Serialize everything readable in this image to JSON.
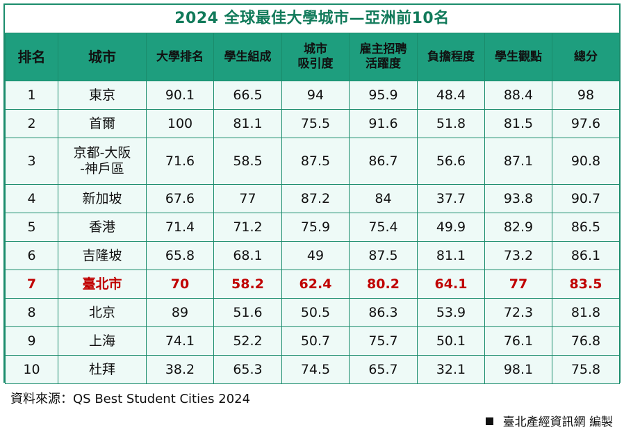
{
  "chart_data": {
    "type": "table",
    "title": "2024 全球最佳大學城市—亞洲前10名",
    "columns": [
      {
        "key": "rank",
        "label": "排名"
      },
      {
        "key": "city",
        "label": "城市"
      },
      {
        "key": "rankings",
        "label": "大學排名"
      },
      {
        "key": "student_mix",
        "label": "學生組成"
      },
      {
        "key": "desirability",
        "label": "城市吸引度"
      },
      {
        "key": "employer_activity",
        "label": "雇主招聘活躍度"
      },
      {
        "key": "affordability",
        "label": "負擔程度"
      },
      {
        "key": "student_view",
        "label": "學生觀點"
      },
      {
        "key": "overall",
        "label": "總分"
      }
    ],
    "rows": [
      {
        "rank": "1",
        "city": "東京",
        "rankings": "90.1",
        "student_mix": "66.5",
        "desirability": "94",
        "employer_activity": "95.9",
        "affordability": "48.4",
        "student_view": "88.4",
        "overall": "98"
      },
      {
        "rank": "2",
        "city": "首爾",
        "rankings": "100",
        "student_mix": "81.1",
        "desirability": "75.5",
        "employer_activity": "91.6",
        "affordability": "51.8",
        "student_view": "81.5",
        "overall": "97.6"
      },
      {
        "rank": "3",
        "city": "京都-大阪-神戶區",
        "rankings": "71.6",
        "student_mix": "58.5",
        "desirability": "87.5",
        "employer_activity": "86.7",
        "affordability": "56.6",
        "student_view": "87.1",
        "overall": "90.8"
      },
      {
        "rank": "4",
        "city": "新加坡",
        "rankings": "67.6",
        "student_mix": "77",
        "desirability": "87.2",
        "employer_activity": "84",
        "affordability": "37.7",
        "student_view": "93.8",
        "overall": "90.7"
      },
      {
        "rank": "5",
        "city": "香港",
        "rankings": "71.4",
        "student_mix": "71.2",
        "desirability": "75.9",
        "employer_activity": "75.4",
        "affordability": "49.9",
        "student_view": "82.9",
        "overall": "86.5"
      },
      {
        "rank": "6",
        "city": "吉隆坡",
        "rankings": "65.8",
        "student_mix": "68.1",
        "desirability": "49",
        "employer_activity": "87.5",
        "affordability": "81.1",
        "student_view": "73.2",
        "overall": "86.1"
      },
      {
        "rank": "7",
        "city": "臺北市",
        "rankings": "70",
        "student_mix": "58.2",
        "desirability": "62.4",
        "employer_activity": "80.2",
        "affordability": "64.1",
        "student_view": "77",
        "overall": "83.5",
        "highlight": true
      },
      {
        "rank": "8",
        "city": "北京",
        "rankings": "89",
        "student_mix": "51.6",
        "desirability": "50.5",
        "employer_activity": "86.3",
        "affordability": "53.9",
        "student_view": "72.3",
        "overall": "81.8"
      },
      {
        "rank": "9",
        "city": "上海",
        "rankings": "74.1",
        "student_mix": "52.2",
        "desirability": "50.7",
        "employer_activity": "75.7",
        "affordability": "50.1",
        "student_view": "76.1",
        "overall": "76.8"
      },
      {
        "rank": "10",
        "city": "杜拜",
        "rankings": "38.2",
        "student_mix": "65.3",
        "desirability": "74.5",
        "employer_activity": "65.7",
        "affordability": "32.1",
        "student_view": "98.1",
        "overall": "75.8"
      }
    ]
  },
  "header": {
    "rank": "排名",
    "city": "城市",
    "rankings": "大學排名",
    "student_mix": "學生組成",
    "desirability_line1": "城市",
    "desirability_line2": "吸引度",
    "employer_line1": "雇主招聘",
    "employer_line2": "活躍度",
    "affordability": "負擔程度",
    "student_view": "學生觀點",
    "overall": "總分"
  },
  "city_lines": {
    "r3_line1": "京都-大阪",
    "r3_line2": "-神戶區"
  },
  "footer": {
    "source": "資料來源：QS Best Student Cities 2024",
    "credit": "臺北產經資訊網 編製"
  },
  "colors": {
    "header_bg": "#1e9e7e",
    "title": "#117a5a",
    "row_bg": "#eefaf7",
    "highlight": "#c00000"
  }
}
